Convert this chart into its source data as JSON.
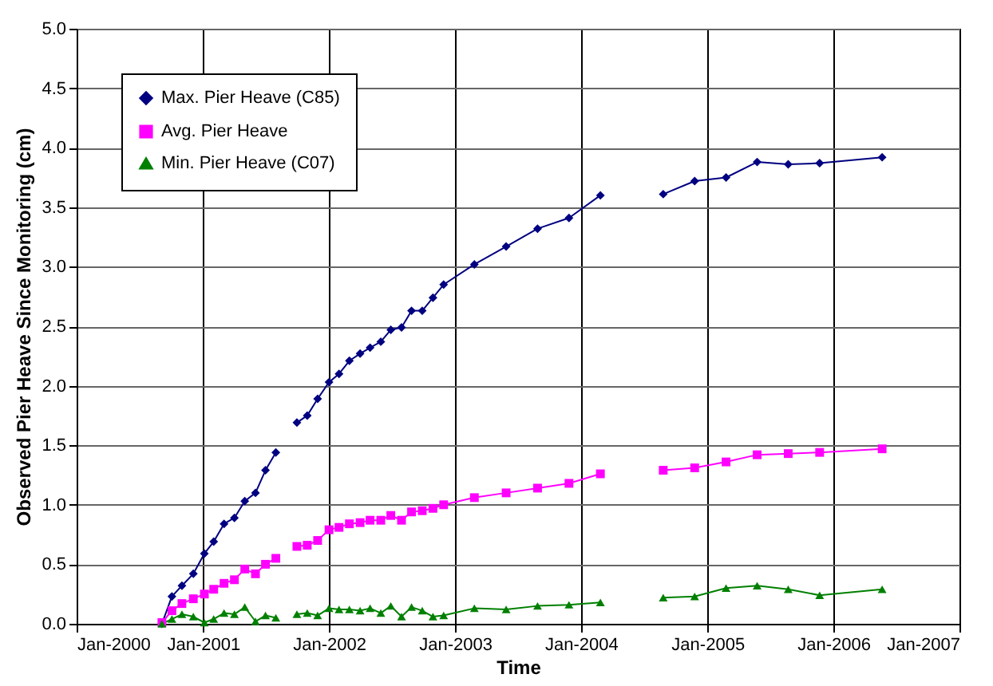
{
  "chart_data": {
    "type": "line",
    "xlabel": "Time",
    "ylabel": "Observed Pier Heave Since Monitoring (cm)",
    "x": [
      "2000-09-04",
      "2000-10-03",
      "2000-11-01",
      "2000-12-04",
      "2001-01-05",
      "2001-02-01",
      "2001-03-03",
      "2001-04-02",
      "2001-05-02",
      "2001-06-02",
      "2001-07-01",
      "2001-07-31",
      "2001-08-31",
      "2001-09-30",
      "2001-10-30",
      "2001-11-29",
      "2002-01-01",
      "2002-01-30",
      "2002-03-01",
      "2002-04-01",
      "2002-04-30",
      "2002-05-31",
      "2002-06-29",
      "2002-07-30",
      "2002-08-28",
      "2002-09-28",
      "2002-10-29",
      "2002-11-29",
      "2003-02-26",
      "2003-05-29",
      "2003-08-28",
      "2003-11-27",
      "2004-02-26",
      "2004-05-27",
      "2004-08-26",
      "2004-11-25",
      "2005-02-24",
      "2005-05-25",
      "2005-08-23",
      "2005-11-22",
      "2006-05-22"
    ],
    "series": [
      {
        "name": "Max. Pier Heave (C85)",
        "color": "#000080",
        "marker": "diamond",
        "values": [
          0.0,
          0.23,
          0.32,
          0.42,
          0.59,
          0.69,
          0.84,
          0.89,
          1.03,
          1.1,
          1.29,
          1.44,
          null,
          1.69,
          1.75,
          1.89,
          2.03,
          2.1,
          2.21,
          2.27,
          2.32,
          2.37,
          2.47,
          2.49,
          2.63,
          2.63,
          2.74,
          2.85,
          3.02,
          3.17,
          3.32,
          3.41,
          3.6,
          null,
          3.61,
          3.72,
          3.75,
          3.88,
          3.86,
          3.87,
          3.92
        ]
      },
      {
        "name": "Avg. Pier Heave",
        "color": "#ff00ff",
        "marker": "square",
        "values": [
          0.01,
          0.11,
          0.17,
          0.21,
          0.25,
          0.29,
          0.34,
          0.37,
          0.46,
          0.42,
          0.5,
          0.55,
          null,
          0.65,
          0.66,
          0.7,
          0.79,
          0.81,
          0.84,
          0.85,
          0.87,
          0.87,
          0.91,
          0.87,
          0.94,
          0.95,
          0.97,
          1.0,
          1.06,
          1.1,
          1.14,
          1.18,
          1.26,
          null,
          1.29,
          1.31,
          1.36,
          1.42,
          1.43,
          1.44,
          1.47
        ]
      },
      {
        "name": "Min. Pier Heave (C07)",
        "color": "#008000",
        "marker": "triangle",
        "values": [
          0.0,
          0.04,
          0.08,
          0.06,
          0.01,
          0.04,
          0.09,
          0.08,
          0.14,
          0.02,
          0.07,
          0.05,
          null,
          0.08,
          0.09,
          0.07,
          0.13,
          0.12,
          0.12,
          0.11,
          0.13,
          0.09,
          0.15,
          0.06,
          0.14,
          0.11,
          0.06,
          0.07,
          0.13,
          0.12,
          0.15,
          0.16,
          0.18,
          null,
          0.22,
          0.23,
          0.3,
          0.32,
          0.29,
          0.24,
          0.29
        ]
      }
    ],
    "xlim": [
      "2000-01-01",
      "2007-01-01"
    ],
    "xticks": [
      {
        "value": "2000-01-01",
        "label": "Jan-2000"
      },
      {
        "value": "2001-01-01",
        "label": "Jan-2001"
      },
      {
        "value": "2002-01-01",
        "label": "Jan-2002"
      },
      {
        "value": "2003-01-01",
        "label": "Jan-2003"
      },
      {
        "value": "2004-01-01",
        "label": "Jan-2004"
      },
      {
        "value": "2005-01-01",
        "label": "Jan-2005"
      },
      {
        "value": "2006-01-01",
        "label": "Jan-2006"
      },
      {
        "value": "2007-01-01",
        "label": "Jan-2007"
      }
    ],
    "ylim": [
      0,
      5
    ],
    "yticks": [
      {
        "value": 0,
        "label": "0.0"
      },
      {
        "value": 0.5,
        "label": "0.5"
      },
      {
        "value": 1,
        "label": "1.0"
      },
      {
        "value": 1.5,
        "label": "1.5"
      },
      {
        "value": 2,
        "label": "2.0"
      },
      {
        "value": 2.5,
        "label": "2.5"
      },
      {
        "value": 3,
        "label": "3.0"
      },
      {
        "value": 3.5,
        "label": "3.5"
      },
      {
        "value": 4,
        "label": "4.0"
      },
      {
        "value": 4.5,
        "label": "4.5"
      },
      {
        "value": 5,
        "label": "5.0"
      }
    ],
    "grid": true,
    "legend": "top left",
    "line_style": "solid"
  }
}
